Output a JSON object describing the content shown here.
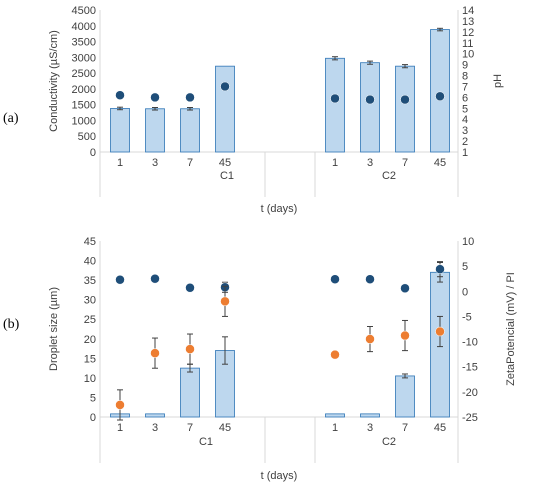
{
  "chart_data": [
    {
      "type": "bar",
      "panel_label": "(a)",
      "categories": [
        "1",
        "3",
        "7",
        "45",
        "1",
        "3",
        "7",
        "45"
      ],
      "groups": [
        "C1",
        "C2"
      ],
      "xlabel": "t (days)",
      "ylabel": "Conductivity (µS/cm)",
      "ylabel2": "pH",
      "ylim": [
        0,
        4500
      ],
      "y2lim": [
        1,
        14
      ],
      "yticks": [
        "0",
        "500",
        "1000",
        "1500",
        "2000",
        "2500",
        "3000",
        "3500",
        "4000",
        "4500"
      ],
      "y2ticks": [
        "1",
        "2",
        "3",
        "4",
        "5",
        "6",
        "7",
        "8",
        "9",
        "10",
        "11",
        "12",
        "13",
        "14"
      ],
      "series": [
        {
          "kind": "bar",
          "values": [
            1380,
            1370,
            1370,
            2720,
            2970,
            2830,
            2720,
            3880
          ],
          "errors": [
            40,
            40,
            40,
            0,
            50,
            50,
            50,
            40
          ],
          "color": "#bdd7ee"
        },
        {
          "kind": "scatter",
          "axis": "right",
          "values": [
            6.2,
            6.0,
            6.0,
            7.0,
            5.9,
            5.8,
            5.8,
            6.1
          ],
          "color": "#1f4e79"
        }
      ]
    },
    {
      "type": "bar",
      "panel_label": "(b)",
      "categories": [
        "1",
        "3",
        "7",
        "45",
        "1",
        "3",
        "7",
        "45"
      ],
      "groups": [
        "C1",
        "C2"
      ],
      "xlabel": "t (days)",
      "ylabel": "Droplet size (µm)",
      "ylabel2": "ZetaPotencial (mV) / PI",
      "ylim": [
        0,
        45
      ],
      "y2lim": [
        -25,
        10
      ],
      "yticks": [
        "0",
        "5",
        "10",
        "15",
        "20",
        "25",
        "30",
        "35",
        "40",
        "45"
      ],
      "y2ticks": [
        "-25",
        "-20",
        "-15",
        "-10",
        "-5",
        "0",
        "5",
        "10"
      ],
      "series": [
        {
          "kind": "bar",
          "values": [
            0.8,
            0.8,
            12.5,
            17,
            0.8,
            0.8,
            10.5,
            37
          ],
          "errors": [
            0,
            0,
            1,
            3.5,
            0,
            0,
            0.5,
            2.5
          ],
          "color": "#bdd7ee"
        },
        {
          "kind": "scatter",
          "axis": "right",
          "values": [
            2.3,
            2.5,
            0.7,
            0.8,
            2.4,
            2.4,
            0.6,
            4.4
          ],
          "errors": [
            0,
            0,
            0,
            1,
            0,
            0,
            0,
            1.5
          ],
          "color": "#1f4e79"
        },
        {
          "kind": "scatter",
          "axis": "right",
          "values": [
            -22.6,
            -12.3,
            -11.5,
            -2.0,
            -12.6,
            -9.5,
            -8.8,
            -8.0
          ],
          "errors": [
            3,
            3,
            3,
            3,
            0,
            2.5,
            3,
            3
          ],
          "color": "#ed7d31"
        }
      ]
    }
  ]
}
